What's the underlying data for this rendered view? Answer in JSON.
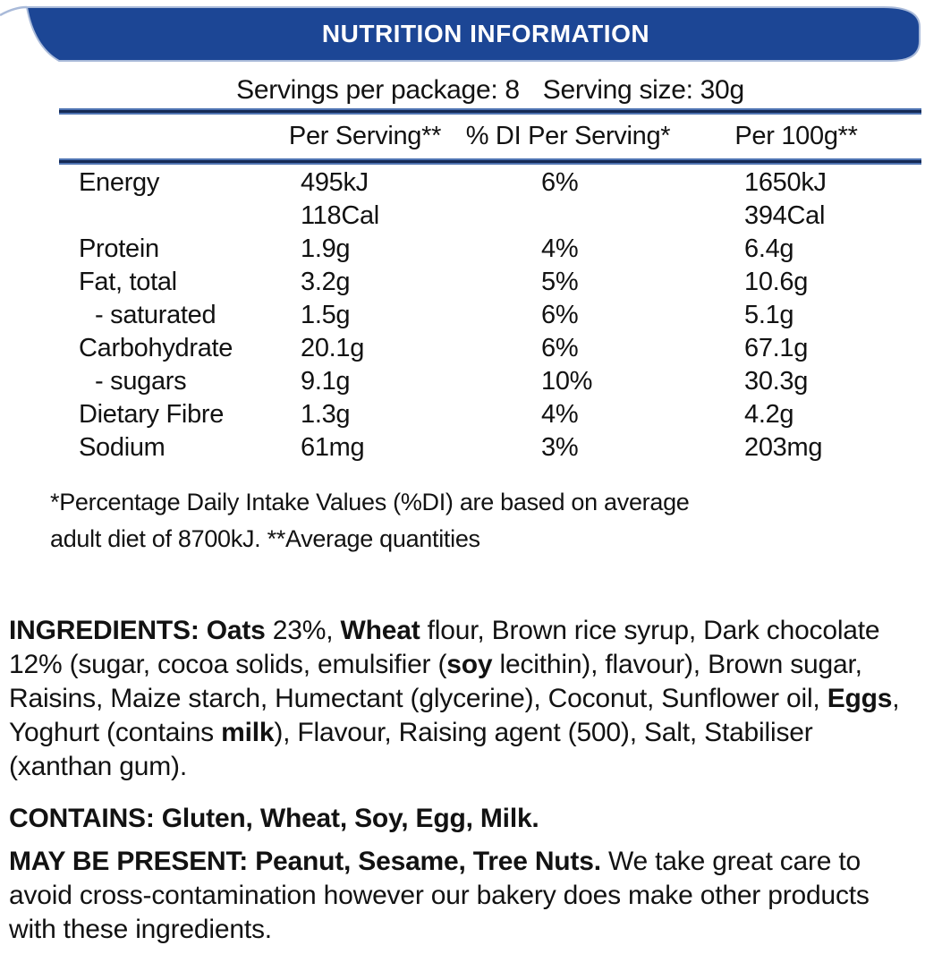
{
  "header": {
    "title": "NUTRITION INFORMATION"
  },
  "serving_info": {
    "servings_text": "Servings per package: 8",
    "size_text": "Serving size: 30g"
  },
  "table": {
    "columns": [
      "",
      "Per Serving**",
      "% DI Per Serving*",
      "Per 100g**"
    ],
    "rows": [
      {
        "nutrient": "Energy",
        "indent": false,
        "per_serving": [
          "495kJ",
          "118Cal"
        ],
        "di": [
          "6%"
        ],
        "per_100g": [
          "1650kJ",
          "394Cal"
        ]
      },
      {
        "nutrient": "Protein",
        "indent": false,
        "per_serving": [
          "1.9g"
        ],
        "di": [
          "4%"
        ],
        "per_100g": [
          "6.4g"
        ]
      },
      {
        "nutrient": "Fat, total",
        "indent": false,
        "per_serving": [
          "3.2g"
        ],
        "di": [
          "5%"
        ],
        "per_100g": [
          "10.6g"
        ]
      },
      {
        "nutrient": "- saturated",
        "indent": true,
        "per_serving": [
          "1.5g"
        ],
        "di": [
          "6%"
        ],
        "per_100g": [
          "5.1g"
        ]
      },
      {
        "nutrient": "Carbohydrate",
        "indent": false,
        "per_serving": [
          "20.1g"
        ],
        "di": [
          "6%"
        ],
        "per_100g": [
          "67.1g"
        ]
      },
      {
        "nutrient": "- sugars",
        "indent": true,
        "per_serving": [
          "9.1g"
        ],
        "di": [
          "10%"
        ],
        "per_100g": [
          "30.3g"
        ]
      },
      {
        "nutrient": "Dietary Fibre",
        "indent": false,
        "per_serving": [
          "1.3g"
        ],
        "di": [
          "4%"
        ],
        "per_100g": [
          "4.2g"
        ]
      },
      {
        "nutrient": "Sodium",
        "indent": false,
        "per_serving": [
          "61mg"
        ],
        "di": [
          "3%"
        ],
        "per_100g": [
          "203mg"
        ]
      }
    ]
  },
  "footnote": {
    "lines": [
      "*Percentage Daily Intake Values (%DI) are based on average",
      "adult diet of 8700kJ. **Average quantities"
    ]
  },
  "ingredients": {
    "runs": [
      {
        "t": "INGREDIENTS: ",
        "b": 1
      },
      {
        "t": "Oats",
        "b": 1
      },
      {
        "t": " 23%, ",
        "b": 0
      },
      {
        "t": "Wheat",
        "b": 1
      },
      {
        "t": " flour, Brown rice syrup, Dark chocolate 12% (sugar, cocoa solids, emulsifier (",
        "b": 0
      },
      {
        "t": "soy",
        "b": 1
      },
      {
        "t": " lecithin), flavour), Brown sugar, Raisins, Maize starch, Humectant (glycerine), Coconut, Sunflower oil, ",
        "b": 0
      },
      {
        "t": "Eggs",
        "b": 1
      },
      {
        "t": ", Yoghurt (contains ",
        "b": 0
      },
      {
        "t": "milk",
        "b": 1
      },
      {
        "t": "), Flavour, Raising agent (500), Salt, Stabiliser (xanthan gum).",
        "b": 0
      }
    ]
  },
  "contains": {
    "runs": [
      {
        "t": "CONTAINS: Gluten, Wheat, Soy, Egg, Milk.",
        "b": 1
      }
    ]
  },
  "may_be_present": {
    "runs": [
      {
        "t": "MAY BE PRESENT: Peanut, Sesame, Tree Nuts.",
        "b": 1
      },
      {
        "t": " We take great care to avoid cross-contamination however our bakery does make other products with these ingredients.",
        "b": 0
      }
    ]
  },
  "colors": {
    "banner_blue": "#1c4695",
    "rule_core": "#152a55",
    "rule_edge": "#4f74b2",
    "outline_light": "#a9bad9",
    "text": "#121212"
  }
}
